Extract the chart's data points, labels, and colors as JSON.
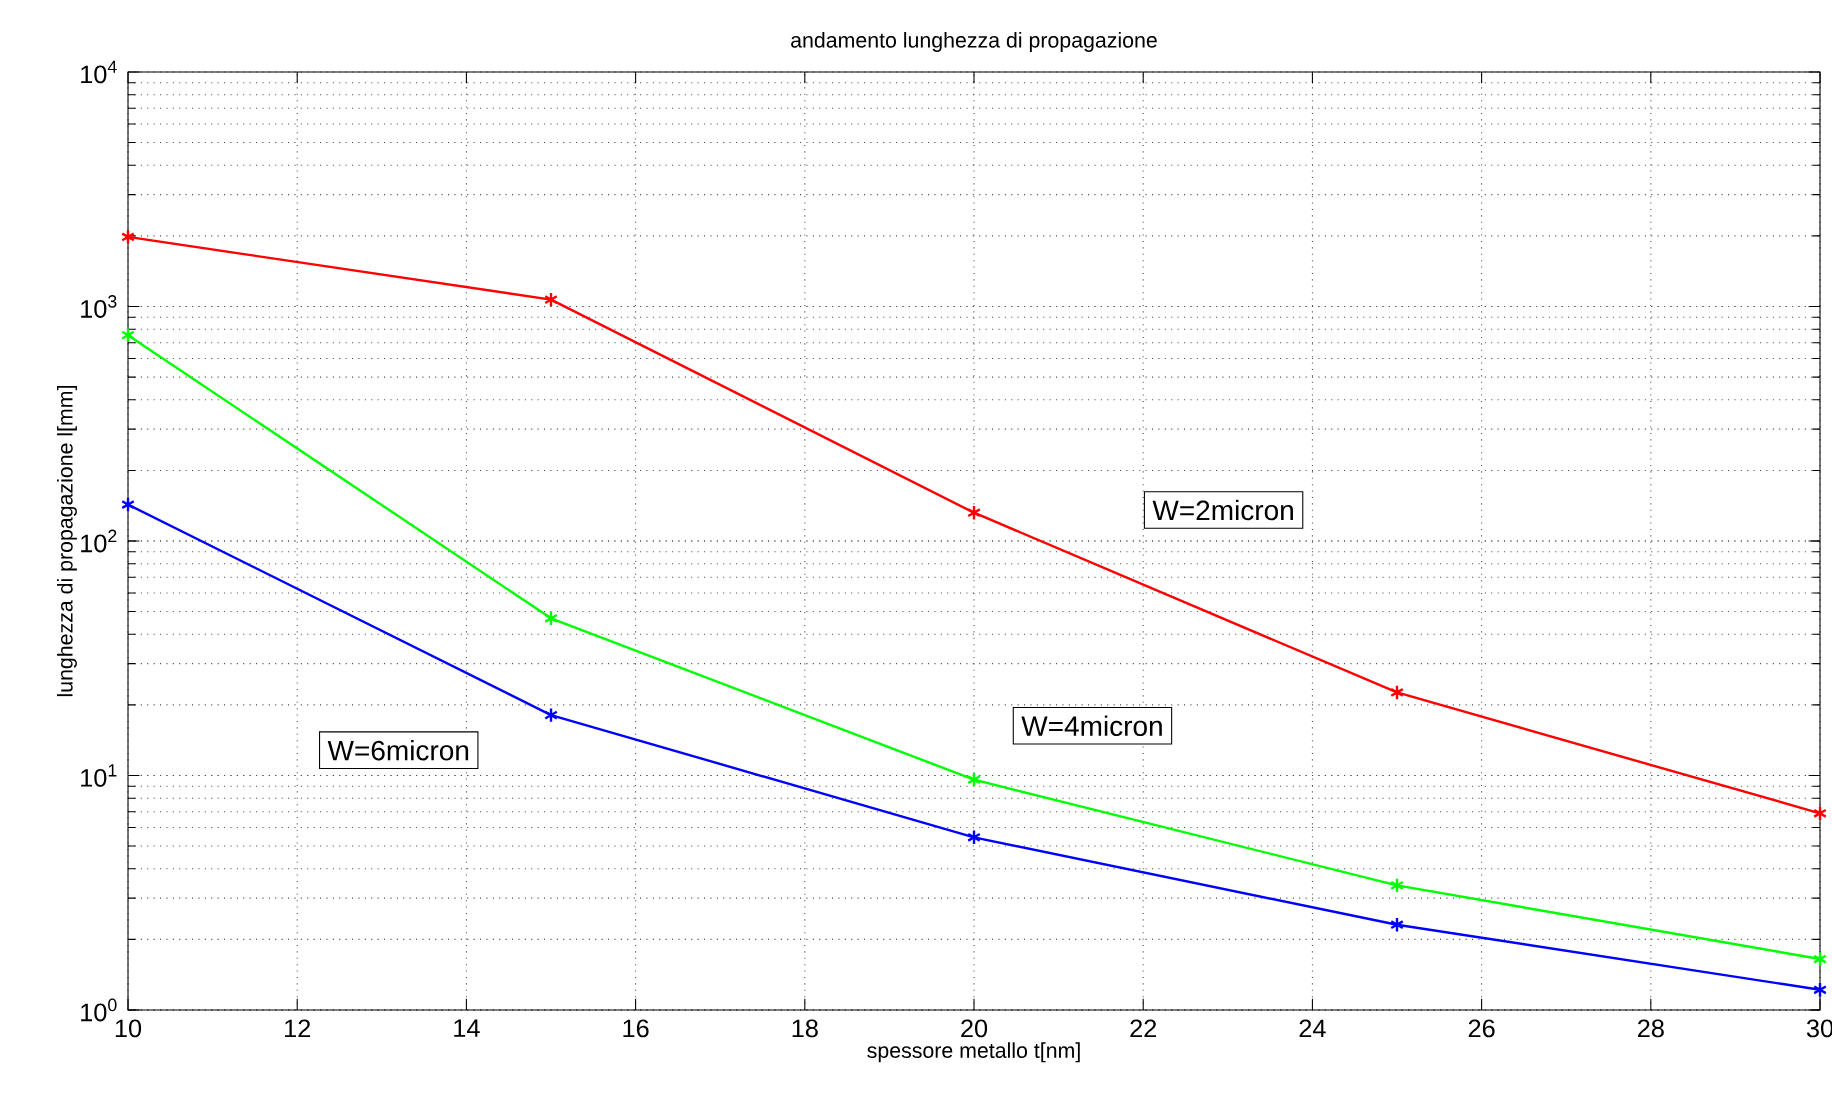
{
  "chart_data": {
    "type": "line",
    "title": "andamento lunghezza di propagazione",
    "xlabel": "spessore metallo t[nm]",
    "ylabel": "lunghezza di propagazione l[mm]",
    "x": [
      10,
      15,
      20,
      25,
      30
    ],
    "series": [
      {
        "color": "#ff0000",
        "values": [
          1980,
          1070,
          132,
          22.6,
          6.9
        ]
      },
      {
        "color": "#00ff00",
        "values": [
          755,
          46.8,
          9.6,
          3.4,
          1.65
        ]
      },
      {
        "color": "#0000ff",
        "values": [
          143,
          18.1,
          5.45,
          2.31,
          1.22
        ]
      }
    ],
    "log": "y",
    "grid": true,
    "marker": "cross",
    "line_style": "solid",
    "xlim": [
      10,
      30
    ],
    "xticks": [
      10,
      12,
      14,
      16,
      18,
      20,
      22,
      24,
      26,
      28,
      30
    ],
    "ylim": [
      1,
      10000
    ],
    "yticks": [
      {
        "value": 1,
        "label": "10$^{0}$"
      },
      {
        "value": 10,
        "label": "10$^{1}$"
      },
      {
        "value": 100,
        "label": "10$^{2}$"
      },
      {
        "value": 1000,
        "label": "10$^{3}$"
      },
      {
        "value": 10000,
        "label": "10$^{4}$"
      }
    ],
    "annotations": [
      "W=2micron",
      "W=4micron",
      "W=6micron"
    ]
  }
}
